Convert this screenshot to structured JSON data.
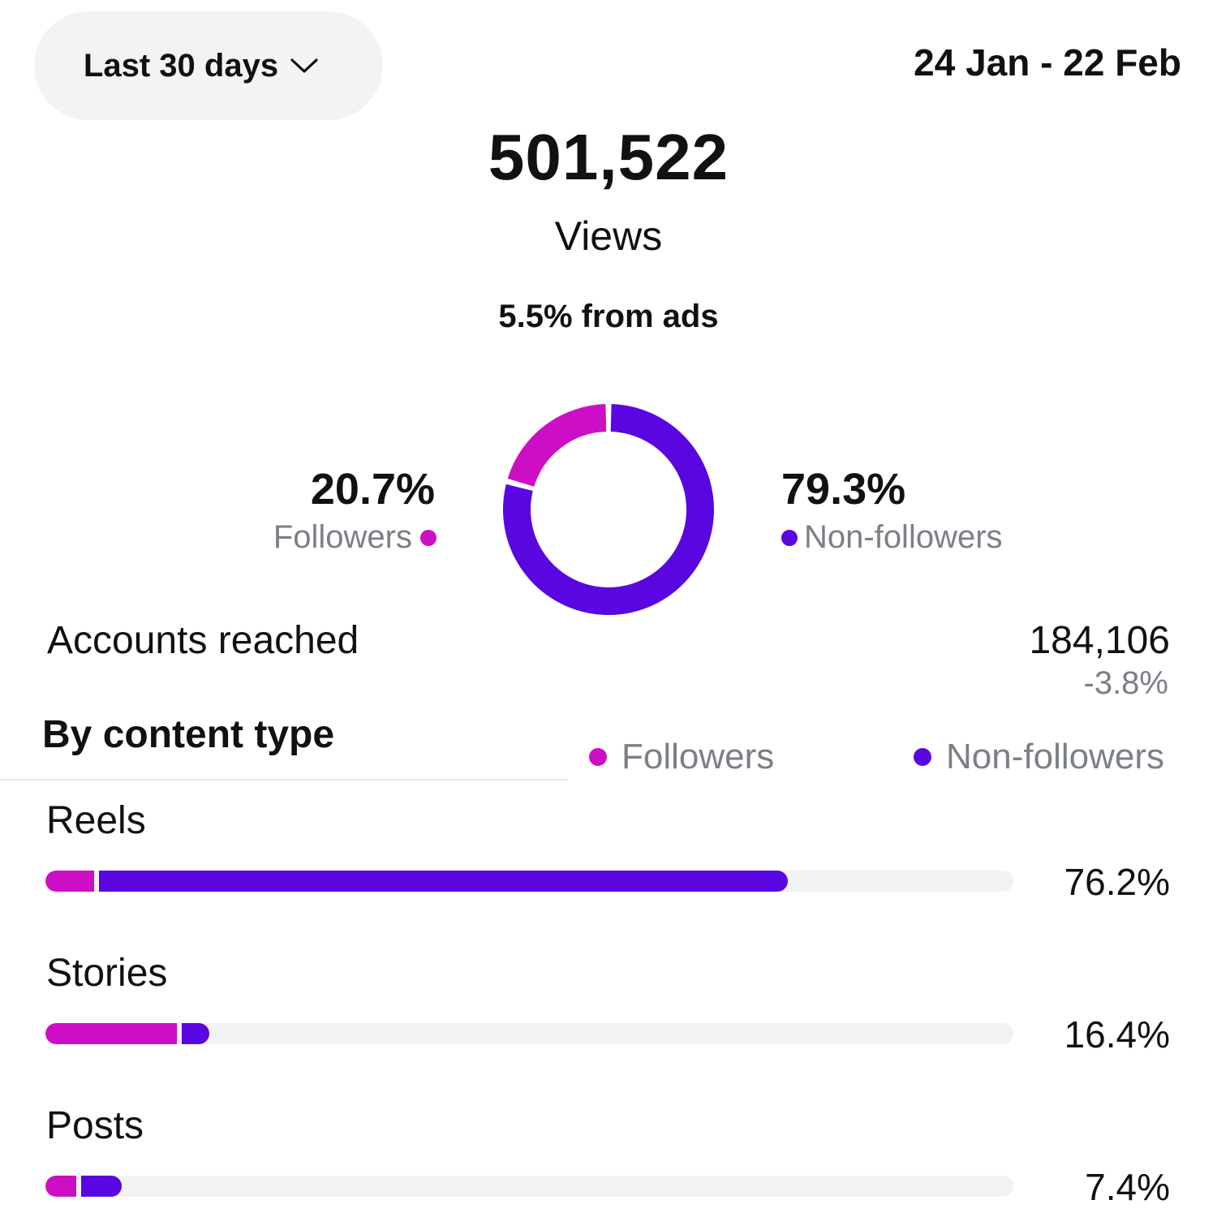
{
  "filter": {
    "period_label": "Last 30 days",
    "date_range": "24 Jan - 22 Feb"
  },
  "views": {
    "value": "501,522",
    "label": "Views",
    "ads_note": "5.5% from ads"
  },
  "audience_split": {
    "followers": {
      "pct": "20.7%",
      "label": "Followers",
      "fraction": 0.207
    },
    "non_followers": {
      "pct": "79.3%",
      "label": "Non-followers",
      "fraction": 0.793
    }
  },
  "accounts_reached": {
    "label": "Accounts reached",
    "value": "184,106",
    "change": "-3.8%"
  },
  "content_type": {
    "title": "By content type",
    "legend": {
      "followers": "Followers",
      "non_followers": "Non-followers"
    },
    "rows": [
      {
        "label": "Reels",
        "pct": "76.2%",
        "followers_fraction": 0.05,
        "non_followers_fraction": 0.712
      },
      {
        "label": "Stories",
        "pct": "16.4%",
        "followers_fraction": 0.136,
        "non_followers_fraction": 0.028
      },
      {
        "label": "Posts",
        "pct": "7.4%",
        "followers_fraction": 0.032,
        "non_followers_fraction": 0.042
      }
    ]
  },
  "colors": {
    "followers": "#cc0fc4",
    "non_followers": "#5a06e0",
    "track": "#f1f2f4",
    "muted_text": "#7b7f86"
  },
  "icons": {
    "period_dropdown": "chevron-down-icon"
  }
}
